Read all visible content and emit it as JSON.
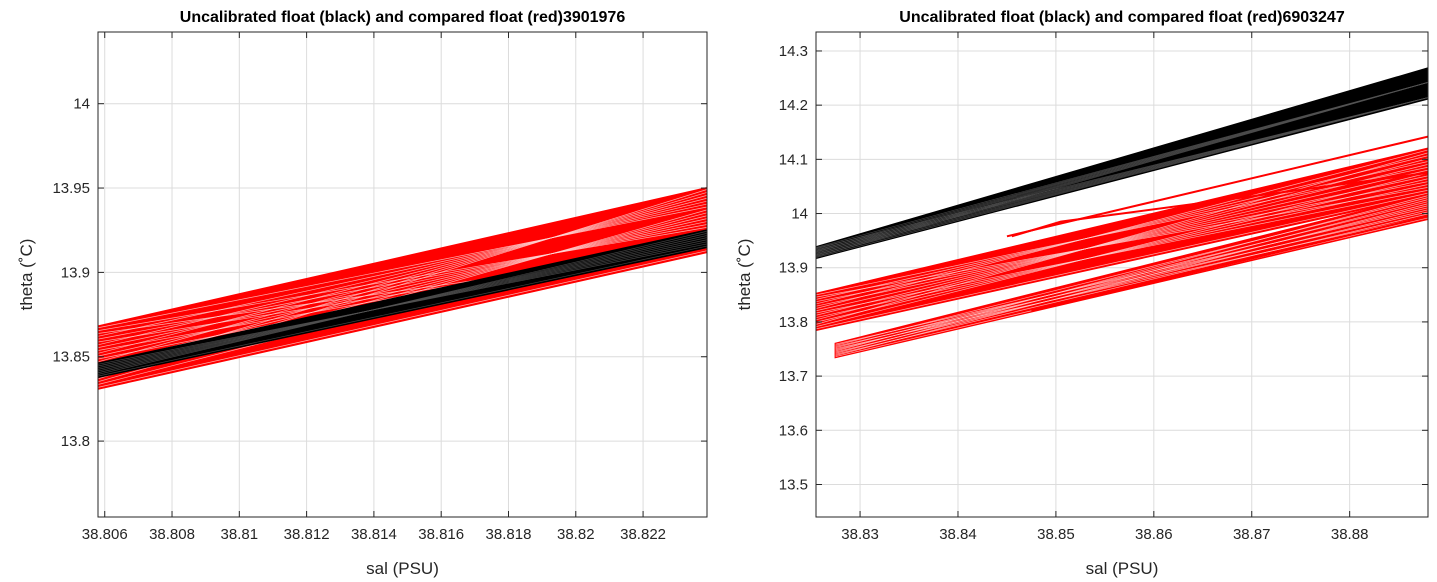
{
  "chart_data": [
    {
      "type": "line",
      "title": "Uncalibrated float (black) and compared float (red)3901976",
      "xlabel": "sal (PSU)",
      "ylabel": "theta (˚C)",
      "xlim": [
        38.8058,
        38.8239
      ],
      "ylim": [
        13.755,
        14.0425
      ],
      "xticks": [
        38.806,
        38.808,
        38.81,
        38.812,
        38.814,
        38.816,
        38.818,
        38.82,
        38.822
      ],
      "xtick_labels": [
        "38.806",
        "38.808",
        "38.81",
        "38.812",
        "38.814",
        "38.816",
        "38.818",
        "38.82",
        "38.822"
      ],
      "yticks": [
        13.8,
        13.85,
        13.9,
        13.95,
        14.0
      ],
      "ytick_labels": [
        "13.8",
        "13.85",
        "13.9",
        "13.95",
        "14"
      ],
      "grid": true,
      "series": [
        {
          "color": "#ff0000",
          "band": {
            "x": [
              38.8058,
              38.8239
            ],
            "y_low": [
              13.831,
              13.912
            ],
            "y_high": [
              13.868,
              13.95
            ]
          },
          "count": 22
        },
        {
          "color": "#000000",
          "band": {
            "x": [
              38.8058,
              38.8239
            ],
            "y_low": [
              13.838,
              13.915
            ],
            "y_high": [
              13.846,
              13.925
            ]
          },
          "count": 8
        }
      ]
    },
    {
      "type": "line",
      "title": "Uncalibrated float (black) and compared float (red)6903247",
      "xlabel": "sal (PSU)",
      "ylabel": "theta (˚C)",
      "xlim": [
        38.8255,
        38.888
      ],
      "ylim": [
        13.44,
        14.335
      ],
      "xticks": [
        38.83,
        38.84,
        38.85,
        38.86,
        38.87,
        38.88
      ],
      "xtick_labels": [
        "38.83",
        "38.84",
        "38.85",
        "38.86",
        "38.87",
        "38.88"
      ],
      "yticks": [
        13.5,
        13.6,
        13.7,
        13.8,
        13.9,
        14.0,
        14.1,
        14.2,
        14.3
      ],
      "ytick_labels": [
        "13.5",
        "13.6",
        "13.7",
        "13.8",
        "13.9",
        "14",
        "14.1",
        "14.2",
        "14.3"
      ],
      "grid": true,
      "series": [
        {
          "color": "#000000",
          "band": {
            "x": [
              38.8255,
              38.888
            ],
            "y_low": [
              13.918,
              14.212
            ],
            "y_high": [
              13.938,
              14.268
            ]
          },
          "count": 14
        },
        {
          "color": "#ff0000",
          "band": {
            "x": [
              38.8255,
              38.888
            ],
            "y_low": [
              13.785,
              14.035
            ],
            "y_high": [
              13.852,
              14.12
            ]
          },
          "count": 16
        },
        {
          "color": "#ff0000",
          "band": {
            "x": [
              38.8275,
              38.888
            ],
            "y_low": [
              13.735,
              13.99
            ],
            "y_high": [
              13.76,
              14.035
            ]
          },
          "count": 12
        },
        {
          "color": "#ff0000",
          "lines": [
            {
              "x": [
                38.845,
                38.888
              ],
              "y": [
                13.958,
                14.142
              ]
            },
            {
              "x": [
                38.8455,
                38.8505,
                38.888
              ],
              "y": [
                13.958,
                13.985,
                14.075
              ]
            },
            {
              "x": [
                38.8475,
                38.888
              ],
              "y": [
                13.82,
                13.995
              ]
            }
          ]
        }
      ]
    }
  ]
}
